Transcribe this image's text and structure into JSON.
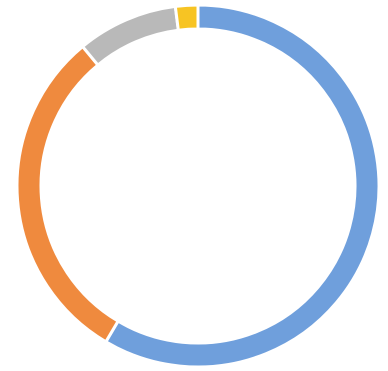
{
  "chart_data": {
    "type": "pie",
    "subtype": "donut",
    "series": [
      {
        "values": [
          58.5,
          30.5,
          9.0,
          2.0
        ]
      }
    ],
    "colors": [
      "#6f9fdc",
      "#ef8a3e",
      "#b9b9b9",
      "#f7c423"
    ],
    "start_angle_deg": 0,
    "direction": "clockwise",
    "legend": "none",
    "data_labels": "none"
  }
}
